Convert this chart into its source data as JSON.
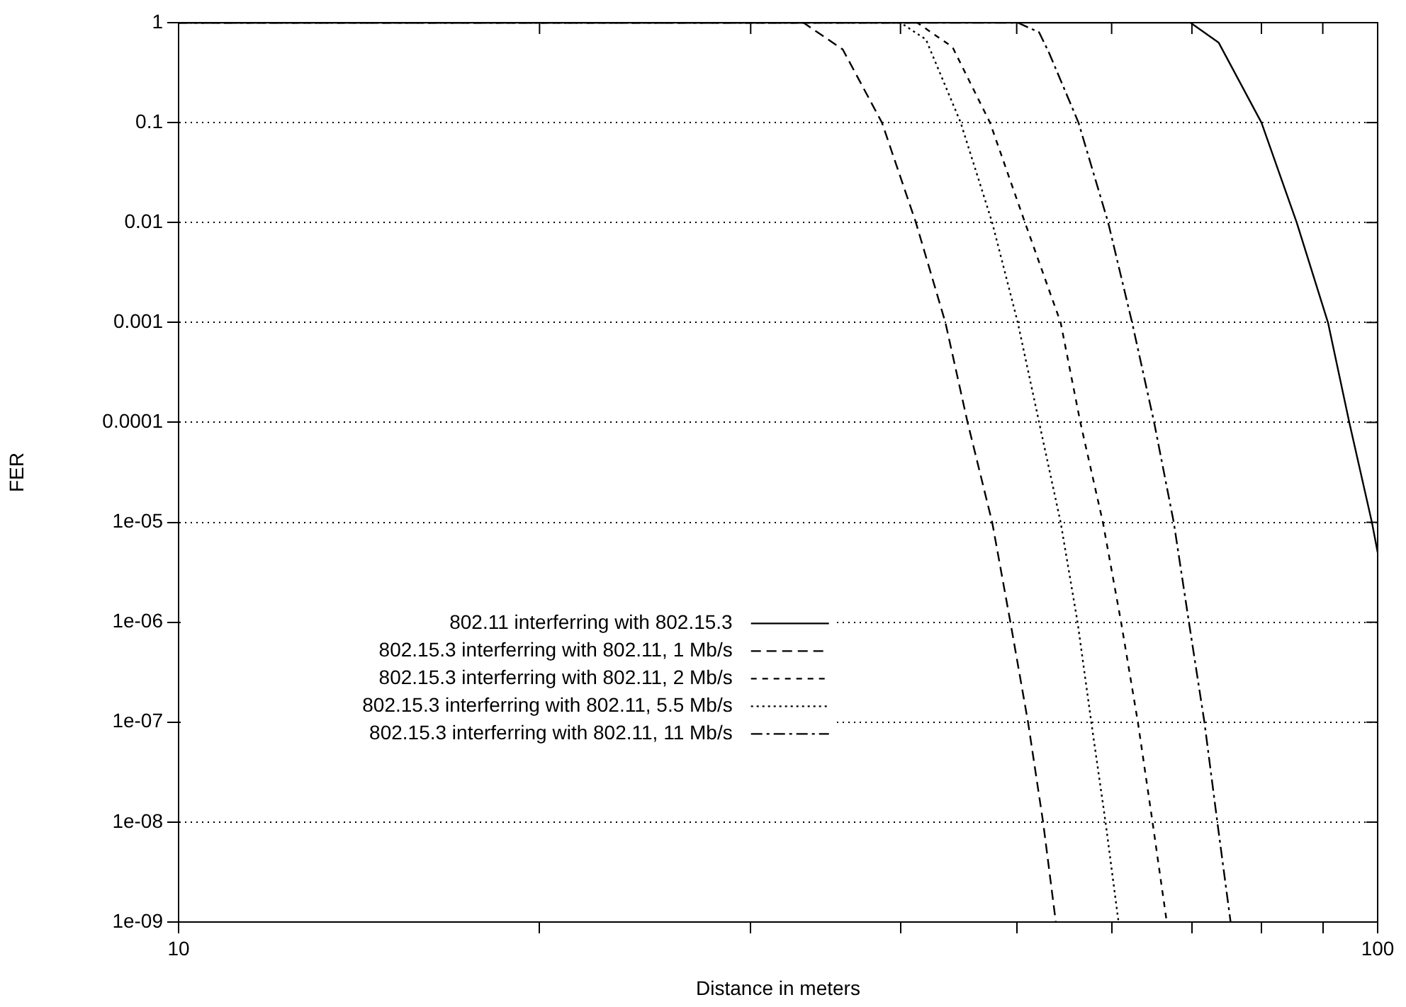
{
  "chart_data": {
    "type": "line",
    "xlabel": "Distance in meters",
    "ylabel": "FER",
    "log": "xy",
    "grid": "y",
    "legend": "left",
    "marker": "none",
    "xlim": [
      10,
      100
    ],
    "xticks": [
      10,
      {
        "value": 20,
        "label": null
      },
      {
        "value": 30,
        "label": null
      },
      {
        "value": 40,
        "label": null
      },
      {
        "value": 50,
        "label": null
      },
      {
        "value": 60,
        "label": null
      },
      {
        "value": 70,
        "label": null
      },
      {
        "value": 80,
        "label": null
      },
      {
        "value": 90,
        "label": null
      },
      100
    ],
    "ylim": [
      1e-09,
      1
    ],
    "yticks": [
      1,
      0.1,
      0.01,
      0.001,
      0.0001,
      {
        "value": 1e-05,
        "label": "1e-05"
      },
      {
        "value": 1e-06,
        "label": "1e-06"
      },
      {
        "value": 1e-07,
        "label": "1e-07"
      },
      {
        "value": 1e-08,
        "label": "1e-08"
      },
      {
        "value": 1e-09,
        "label": "1e-09"
      }
    ],
    "series": [
      {
        "name": "802.11 interferring with 802.15.3",
        "color": "#000000",
        "line_style": "solid",
        "x": [
          10,
          69.8,
          73.7,
          80.0,
          85.6,
          90.9,
          94.7,
          98.9,
          100
        ],
        "values": [
          1,
          1,
          0.63,
          0.1,
          0.01,
          0.001,
          0.0001,
          1e-05,
          5e-06
        ]
      },
      {
        "name": "802.15.3 interferring with 802.11, 1 Mb/s",
        "color": "#000000",
        "line_style": "dashed",
        "x": [
          10,
          33.2,
          35.8,
          38.6,
          41.2,
          43.6,
          45.5,
          47.7,
          49.4,
          51.1,
          52.6,
          53.9
        ],
        "values": [
          1,
          1,
          0.54,
          0.1,
          0.01,
          0.001,
          0.0001,
          1e-05,
          1e-06,
          1e-07,
          1e-08,
          1e-09
        ]
      },
      {
        "name": "802.15.3 interferring with 802.11, 2 Mb/s",
        "color": "#000000",
        "line_style": "dashed",
        "x": [
          10,
          41.3,
          44.2,
          47.5,
          50.8,
          54.4,
          56.5,
          59.0,
          61.1,
          63.1,
          64.9,
          66.7
        ],
        "values": [
          1,
          1,
          0.57,
          0.1,
          0.01,
          0.001,
          0.0001,
          1e-05,
          1e-06,
          1e-07,
          1e-08,
          1e-09
        ]
      },
      {
        "name": "802.15.3 interferring with 802.11, 5.5 Mb/s",
        "color": "#000000",
        "line_style": "dotted",
        "x": [
          10,
          40.0,
          42.0,
          44.9,
          47.7,
          50.1,
          52.2,
          54.4,
          56.2,
          57.7,
          59.3,
          60.8
        ],
        "values": [
          1,
          1,
          0.68,
          0.1,
          0.01,
          0.001,
          0.0001,
          1e-05,
          1e-06,
          1e-07,
          1e-08,
          1e-09
        ]
      },
      {
        "name": "802.15.3 interferring with 802.11, 11 Mb/s",
        "color": "#000000",
        "line_style": "dashdot",
        "x": [
          10,
          50.1,
          52.2,
          53.2,
          56.3,
          59.6,
          62.4,
          65.1,
          67.6,
          69.6,
          71.7,
          73.5,
          75.4
        ],
        "values": [
          1,
          1,
          0.8,
          0.5,
          0.1,
          0.01,
          0.001,
          0.0001,
          1e-05,
          1e-06,
          1e-07,
          1e-08,
          1e-09
        ]
      }
    ]
  }
}
